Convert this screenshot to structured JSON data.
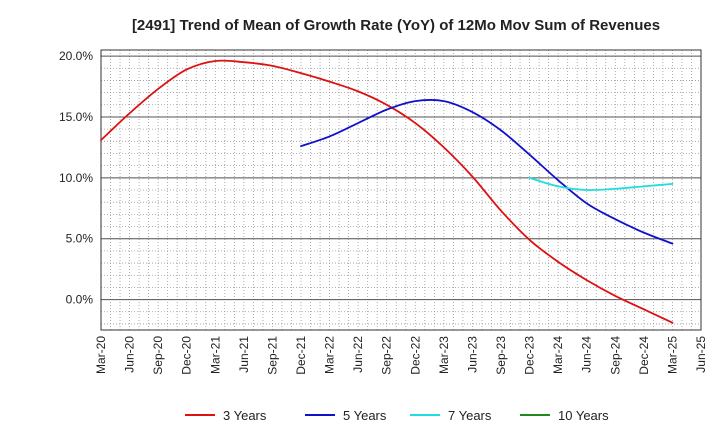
{
  "chart_data": {
    "type": "line",
    "title": "[2491]  Trend of Mean of Growth Rate (YoY) of 12Mo Mov Sum of Revenues",
    "xlabel": "",
    "ylabel": "",
    "ylim": [
      -2.5,
      20.5
    ],
    "y_ticks": [
      20.0,
      15.0,
      10.0,
      5.0,
      0.0
    ],
    "y_tick_labels": [
      "20.0%",
      "15.0%",
      "10.0%",
      "5.0%",
      "0.0%"
    ],
    "x_tick_labels": [
      "Mar-20",
      "Jun-20",
      "Sep-20",
      "Dec-20",
      "Mar-21",
      "Jun-21",
      "Sep-21",
      "Dec-21",
      "Mar-22",
      "Jun-22",
      "Sep-22",
      "Dec-22",
      "Mar-23",
      "Jun-23",
      "Sep-23",
      "Dec-23",
      "Mar-24",
      "Jun-24",
      "Sep-24",
      "Dec-24",
      "Mar-25",
      "Jun-25"
    ],
    "x_range_months": [
      0,
      63
    ],
    "grid": true,
    "legend_position": "bottom",
    "series": [
      {
        "name": "3 Years",
        "color": "#dd1111",
        "points": [
          [
            0,
            13.1
          ],
          [
            3,
            15.3
          ],
          [
            6,
            17.3
          ],
          [
            9,
            18.9
          ],
          [
            12,
            19.6
          ],
          [
            15,
            19.5
          ],
          [
            18,
            19.2
          ],
          [
            21,
            18.6
          ],
          [
            24,
            17.9
          ],
          [
            27,
            17.1
          ],
          [
            30,
            16.0
          ],
          [
            33,
            14.5
          ],
          [
            36,
            12.5
          ],
          [
            39,
            10.1
          ],
          [
            42,
            7.3
          ],
          [
            45,
            4.9
          ],
          [
            48,
            3.1
          ],
          [
            51,
            1.6
          ],
          [
            54,
            0.3
          ],
          [
            57,
            -0.8
          ],
          [
            60,
            -1.9
          ]
        ]
      },
      {
        "name": "5 Years",
        "color": "#1111cc",
        "points": [
          [
            21,
            12.6
          ],
          [
            24,
            13.4
          ],
          [
            27,
            14.5
          ],
          [
            30,
            15.6
          ],
          [
            33,
            16.3
          ],
          [
            36,
            16.3
          ],
          [
            39,
            15.4
          ],
          [
            42,
            13.9
          ],
          [
            45,
            11.9
          ],
          [
            48,
            9.8
          ],
          [
            51,
            7.9
          ],
          [
            54,
            6.6
          ],
          [
            57,
            5.5
          ],
          [
            60,
            4.6
          ]
        ]
      },
      {
        "name": "7 Years",
        "color": "#22dddd",
        "points": [
          [
            45,
            10.0
          ],
          [
            48,
            9.3
          ],
          [
            51,
            9.0
          ],
          [
            54,
            9.1
          ],
          [
            57,
            9.3
          ],
          [
            60,
            9.5
          ]
        ]
      },
      {
        "name": "10 Years",
        "color": "#228822",
        "points": []
      }
    ]
  }
}
